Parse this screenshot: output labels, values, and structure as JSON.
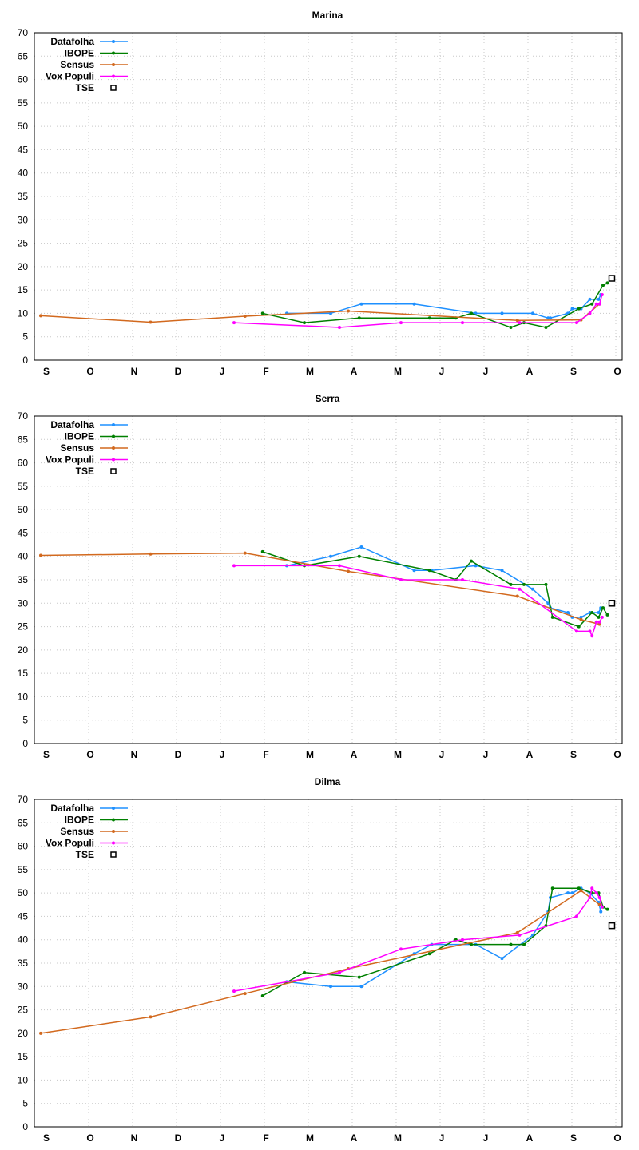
{
  "chart_data": [
    {
      "type": "line",
      "title": "Marina",
      "ylim": [
        0,
        70
      ],
      "yticks": [
        0,
        5,
        10,
        15,
        20,
        25,
        30,
        35,
        40,
        45,
        50,
        55,
        60,
        65,
        70
      ],
      "x_tick_labels": [
        "S",
        "O",
        "N",
        "D",
        "J",
        "F",
        "M",
        "A",
        "M",
        "J",
        "J",
        "A",
        "S",
        "O"
      ],
      "x_unit": "months (0 = S)",
      "grid": true,
      "legend_position": "top-left",
      "series": [
        {
          "name": "Datafolha",
          "color": "#1e90ff",
          "marker": "dot",
          "x": [
            5.6,
            6.6,
            7.3,
            8.5,
            9.9,
            10.5,
            11.2,
            11.55,
            11.6,
            12.0,
            12.1,
            12.3,
            12.5,
            12.7,
            12.75
          ],
          "y": [
            10,
            10,
            12,
            12,
            10,
            10,
            10,
            9,
            9,
            10,
            11,
            11,
            13,
            13,
            14
          ]
        },
        {
          "name": "IBOPE",
          "color": "#008000",
          "marker": "dot",
          "x": [
            5.05,
            6.0,
            7.25,
            8.85,
            9.45,
            9.8,
            10.7,
            11.0,
            11.5,
            12.25,
            12.55,
            12.8,
            12.9
          ],
          "y": [
            10,
            8,
            9,
            9,
            9,
            10,
            7,
            8,
            7,
            11,
            12,
            16,
            16.5
          ],
          "x_extra_note": ""
        },
        {
          "name": "Sensus",
          "color": "#d2691e",
          "marker": "dot",
          "x": [
            0,
            2.5,
            4.65,
            7.0,
            10.85,
            12.3,
            12.72
          ],
          "y": [
            9.5,
            8.1,
            9.4,
            10.5,
            8.5,
            8.6,
            12
          ]
        },
        {
          "name": "Vox Populi",
          "color": "#ff00ff",
          "marker": "dot",
          "x": [
            4.4,
            6.8,
            8.2,
            9.6,
            10.9,
            12.2,
            12.5,
            12.65,
            12.72,
            12.78
          ],
          "y": [
            8,
            7,
            8,
            8,
            8,
            8,
            10,
            12,
            12,
            14
          ]
        },
        {
          "name": "TSE",
          "color": "#000000",
          "marker": "open-square",
          "x": [
            13.0
          ],
          "y": [
            17.5
          ]
        }
      ]
    },
    {
      "type": "line",
      "title": "Serra",
      "ylim": [
        0,
        70
      ],
      "yticks": [
        0,
        5,
        10,
        15,
        20,
        25,
        30,
        35,
        40,
        45,
        50,
        55,
        60,
        65,
        70
      ],
      "x_tick_labels": [
        "S",
        "O",
        "N",
        "D",
        "J",
        "F",
        "M",
        "A",
        "M",
        "J",
        "J",
        "A",
        "S",
        "O"
      ],
      "x_unit": "months (0 = S)",
      "grid": true,
      "legend_position": "top-left",
      "series": [
        {
          "name": "Datafolha",
          "color": "#1e90ff",
          "marker": "dot",
          "x": [
            5.6,
            6.6,
            7.3,
            8.5,
            8.9,
            9.9,
            10.5,
            11.2,
            11.55,
            11.6,
            12.0,
            12.1,
            12.3,
            12.5,
            12.7,
            12.75
          ],
          "y": [
            38,
            40,
            42,
            37,
            37,
            38,
            37,
            33,
            30,
            29,
            28,
            27,
            27,
            28,
            28,
            29
          ]
        },
        {
          "name": "IBOPE",
          "color": "#008000",
          "marker": "dot",
          "x": [
            5.05,
            6.0,
            7.25,
            8.85,
            9.45,
            9.8,
            10.7,
            11.0,
            11.5,
            11.65,
            12.25,
            12.55,
            12.7,
            12.8,
            12.9
          ],
          "y": [
            41,
            38,
            40,
            37,
            35,
            39,
            34,
            34,
            34,
            27,
            25,
            28,
            27,
            29,
            27.5
          ]
        },
        {
          "name": "Sensus",
          "color": "#d2691e",
          "marker": "dot",
          "x": [
            0,
            2.5,
            4.65,
            7.0,
            10.85,
            12.3,
            12.72
          ],
          "y": [
            40.2,
            40.5,
            40.7,
            36.8,
            31.5,
            26.5,
            25.5
          ]
        },
        {
          "name": "Vox Populi",
          "color": "#ff00ff",
          "marker": "dot",
          "x": [
            4.4,
            6.8,
            8.2,
            9.6,
            10.9,
            12.2,
            12.5,
            12.55,
            12.65,
            12.72,
            12.78
          ],
          "y": [
            38,
            38,
            35,
            35,
            33,
            24,
            24,
            23,
            26,
            26,
            27
          ]
        },
        {
          "name": "TSE",
          "color": "#000000",
          "marker": "open-square",
          "x": [
            13.0
          ],
          "y": [
            30
          ]
        }
      ]
    },
    {
      "type": "line",
      "title": "Dilma",
      "ylim": [
        0,
        70
      ],
      "yticks": [
        0,
        5,
        10,
        15,
        20,
        25,
        30,
        35,
        40,
        45,
        50,
        55,
        60,
        65,
        70
      ],
      "x_tick_labels": [
        "S",
        "O",
        "N",
        "D",
        "J",
        "F",
        "M",
        "A",
        "M",
        "J",
        "J",
        "A",
        "S",
        "O"
      ],
      "x_unit": "months (0 = S)",
      "grid": true,
      "legend_position": "top-left",
      "series": [
        {
          "name": "Datafolha",
          "color": "#1e90ff",
          "marker": "dot",
          "x": [
            5.6,
            6.6,
            7.3,
            8.5,
            8.9,
            9.9,
            10.5,
            11.2,
            11.55,
            11.6,
            12.0,
            12.1,
            12.3,
            12.5,
            12.7,
            12.75
          ],
          "y": [
            31,
            30,
            30,
            37,
            39,
            39,
            36,
            41,
            46,
            49,
            50,
            50,
            51,
            50,
            48,
            46
          ]
        },
        {
          "name": "IBOPE",
          "color": "#008000",
          "marker": "dot",
          "x": [
            5.05,
            6.0,
            7.25,
            8.85,
            9.45,
            9.8,
            10.7,
            11.0,
            11.5,
            11.65,
            12.25,
            12.55,
            12.7,
            12.8,
            12.9
          ],
          "y": [
            28,
            33,
            32,
            37,
            40,
            39,
            39,
            39,
            43,
            51,
            51,
            50,
            50,
            47,
            46.5
          ]
        },
        {
          "name": "Sensus",
          "color": "#d2691e",
          "marker": "dot",
          "x": [
            0,
            2.5,
            4.65,
            7.0,
            10.85,
            12.3,
            12.72
          ],
          "y": [
            20,
            23.5,
            28.5,
            33.8,
            41.5,
            50.5,
            47.5
          ]
        },
        {
          "name": "Vox Populi",
          "color": "#ff00ff",
          "marker": "dot",
          "x": [
            4.4,
            6.8,
            8.2,
            9.6,
            10.9,
            12.2,
            12.5,
            12.55,
            12.65,
            12.72,
            12.78
          ],
          "y": [
            29,
            33,
            38,
            40,
            41,
            45,
            49,
            51,
            50,
            49,
            47
          ]
        },
        {
          "name": "TSE",
          "color": "#000000",
          "marker": "open-square",
          "x": [
            13.0
          ],
          "y": [
            43
          ]
        }
      ]
    }
  ]
}
